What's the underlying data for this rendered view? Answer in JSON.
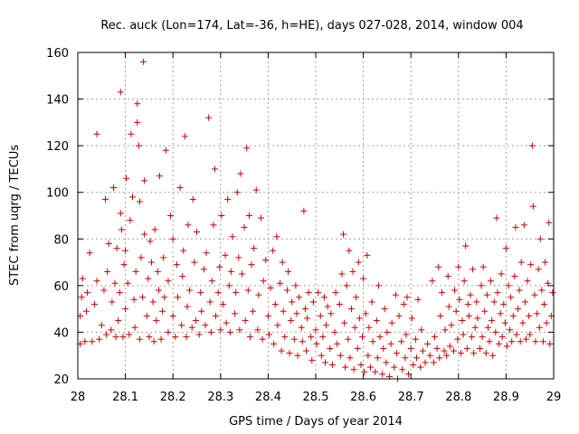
{
  "chart_data": {
    "type": "scatter",
    "title": "Rec. auck (Lon=174, Lat=-36, h=HE), days 027-028, 2014, window 004",
    "xlabel": "GPS time / Days of year 2014",
    "ylabel": "STEC from uqrg / TECUs",
    "xlim": [
      28,
      29
    ],
    "ylim": [
      20,
      160
    ],
    "xticks": [
      "28",
      "28.1",
      "28.2",
      "28.3",
      "28.4",
      "28.5",
      "28.6",
      "28.7",
      "28.8",
      "28.9",
      "29"
    ],
    "yticks": [
      "20",
      "40",
      "60",
      "80",
      "100",
      "120",
      "140",
      "160"
    ],
    "grid": true,
    "marker": "+",
    "color": "#cc0000",
    "points": [
      [
        28.005,
        35
      ],
      [
        28.005,
        47
      ],
      [
        28.008,
        55
      ],
      [
        28.01,
        63
      ],
      [
        28.015,
        36
      ],
      [
        28.018,
        49
      ],
      [
        28.02,
        57
      ],
      [
        28.025,
        74
      ],
      [
        28.03,
        36
      ],
      [
        28.035,
        52
      ],
      [
        28.04,
        62
      ],
      [
        28.04,
        125
      ],
      [
        28.045,
        37
      ],
      [
        28.05,
        43
      ],
      [
        28.055,
        58
      ],
      [
        28.058,
        97
      ],
      [
        28.06,
        39
      ],
      [
        28.062,
        66
      ],
      [
        28.065,
        78
      ],
      [
        28.07,
        41
      ],
      [
        28.072,
        53
      ],
      [
        28.075,
        102
      ],
      [
        28.078,
        61
      ],
      [
        28.08,
        38
      ],
      [
        28.082,
        76
      ],
      [
        28.085,
        45
      ],
      [
        28.088,
        57
      ],
      [
        28.09,
        91
      ],
      [
        28.09,
        143
      ],
      [
        28.092,
        84
      ],
      [
        28.095,
        38
      ],
      [
        28.097,
        69
      ],
      [
        28.1,
        50
      ],
      [
        28.1,
        75
      ],
      [
        28.102,
        106
      ],
      [
        28.105,
        61
      ],
      [
        28.108,
        39
      ],
      [
        28.11,
        88
      ],
      [
        28.112,
        125
      ],
      [
        28.115,
        98
      ],
      [
        28.118,
        54
      ],
      [
        28.12,
        42
      ],
      [
        28.122,
        66
      ],
      [
        28.125,
        138
      ],
      [
        28.125,
        130
      ],
      [
        28.128,
        120
      ],
      [
        28.13,
        96
      ],
      [
        28.13,
        37
      ],
      [
        28.133,
        72
      ],
      [
        28.136,
        55
      ],
      [
        28.138,
        156
      ],
      [
        28.14,
        82
      ],
      [
        28.14,
        105
      ],
      [
        28.145,
        47
      ],
      [
        28.148,
        63
      ],
      [
        28.15,
        38
      ],
      [
        28.152,
        79
      ],
      [
        28.155,
        70
      ],
      [
        28.158,
        53
      ],
      [
        28.16,
        36
      ],
      [
        28.162,
        84
      ],
      [
        28.165,
        45
      ],
      [
        28.168,
        66
      ],
      [
        28.17,
        58
      ],
      [
        28.172,
        107
      ],
      [
        28.175,
        37
      ],
      [
        28.178,
        49
      ],
      [
        28.18,
        72
      ],
      [
        28.182,
        55
      ],
      [
        28.185,
        118
      ],
      [
        28.19,
        40
      ],
      [
        28.19,
        62
      ],
      [
        28.195,
        90
      ],
      [
        28.2,
        47
      ],
      [
        28.2,
        80
      ],
      [
        28.205,
        38
      ],
      [
        28.208,
        69
      ],
      [
        28.21,
        55
      ],
      [
        28.215,
        102
      ],
      [
        28.218,
        43
      ],
      [
        28.22,
        64
      ],
      [
        28.222,
        75
      ],
      [
        28.225,
        124
      ],
      [
        28.228,
        38
      ],
      [
        28.23,
        51
      ],
      [
        28.232,
        86
      ],
      [
        28.235,
        58
      ],
      [
        28.24,
        42
      ],
      [
        28.242,
        97
      ],
      [
        28.245,
        70
      ],
      [
        28.248,
        45
      ],
      [
        28.25,
        83
      ],
      [
        28.255,
        39
      ],
      [
        28.258,
        57
      ],
      [
        28.26,
        49
      ],
      [
        28.265,
        67
      ],
      [
        28.268,
        43
      ],
      [
        28.27,
        74
      ],
      [
        28.275,
        132
      ],
      [
        28.278,
        53
      ],
      [
        28.28,
        40
      ],
      [
        28.282,
        62
      ],
      [
        28.285,
        86
      ],
      [
        28.288,
        110
      ],
      [
        28.29,
        47
      ],
      [
        28.295,
        57
      ],
      [
        28.298,
        68
      ],
      [
        28.3,
        41
      ],
      [
        28.302,
        90
      ],
      [
        28.305,
        52
      ],
      [
        28.31,
        73
      ],
      [
        28.312,
        44
      ],
      [
        28.315,
        97
      ],
      [
        28.318,
        60
      ],
      [
        28.32,
        40
      ],
      [
        28.322,
        66
      ],
      [
        28.325,
        81
      ],
      [
        28.33,
        48
      ],
      [
        28.332,
        57
      ],
      [
        28.335,
        100
      ],
      [
        28.338,
        72
      ],
      [
        28.34,
        41
      ],
      [
        28.342,
        108
      ],
      [
        28.345,
        65
      ],
      [
        28.35,
        85
      ],
      [
        28.352,
        45
      ],
      [
        28.355,
        119
      ],
      [
        28.358,
        58
      ],
      [
        28.36,
        90
      ],
      [
        28.362,
        38
      ],
      [
        28.365,
        69
      ],
      [
        28.368,
        49
      ],
      [
        28.37,
        76
      ],
      [
        28.375,
        101
      ],
      [
        28.378,
        41
      ],
      [
        28.38,
        56
      ],
      [
        28.385,
        89
      ],
      [
        28.388,
        37
      ],
      [
        28.39,
        62
      ],
      [
        28.395,
        71
      ],
      [
        28.4,
        47
      ],
      [
        28.402,
        39
      ],
      [
        28.405,
        59
      ],
      [
        28.41,
        75
      ],
      [
        28.412,
        35
      ],
      [
        28.415,
        52
      ],
      [
        28.418,
        81
      ],
      [
        28.42,
        43
      ],
      [
        28.425,
        61
      ],
      [
        28.428,
        32
      ],
      [
        28.43,
        70
      ],
      [
        28.432,
        49
      ],
      [
        28.435,
        38
      ],
      [
        28.44,
        58
      ],
      [
        28.442,
        66
      ],
      [
        28.445,
        31
      ],
      [
        28.448,
        45
      ],
      [
        28.45,
        53
      ],
      [
        28.455,
        37
      ],
      [
        28.458,
        60
      ],
      [
        28.46,
        48
      ],
      [
        28.462,
        30
      ],
      [
        28.465,
        55
      ],
      [
        28.47,
        42
      ],
      [
        28.472,
        36
      ],
      [
        28.475,
        92
      ],
      [
        28.478,
        50
      ],
      [
        28.48,
        32
      ],
      [
        28.482,
        46
      ],
      [
        28.485,
        57
      ],
      [
        28.49,
        38
      ],
      [
        28.492,
        28
      ],
      [
        28.495,
        53
      ],
      [
        28.5,
        41
      ],
      [
        28.502,
        35
      ],
      [
        28.505,
        57
      ],
      [
        28.51,
        47
      ],
      [
        28.512,
        30
      ],
      [
        28.515,
        38
      ],
      [
        28.518,
        55
      ],
      [
        28.52,
        27
      ],
      [
        28.522,
        43
      ],
      [
        28.525,
        51
      ],
      [
        28.53,
        33
      ],
      [
        28.532,
        48
      ],
      [
        28.535,
        26
      ],
      [
        28.54,
        40
      ],
      [
        28.542,
        57
      ],
      [
        28.545,
        35
      ],
      [
        28.55,
        52
      ],
      [
        28.552,
        30
      ],
      [
        28.555,
        65
      ],
      [
        28.558,
        82
      ],
      [
        28.56,
        44
      ],
      [
        28.562,
        25
      ],
      [
        28.565,
        60
      ],
      [
        28.568,
        37
      ],
      [
        28.57,
        75
      ],
      [
        28.572,
        29
      ],
      [
        28.575,
        50
      ],
      [
        28.578,
        66
      ],
      [
        28.58,
        24
      ],
      [
        28.582,
        42
      ],
      [
        28.585,
        55
      ],
      [
        28.588,
        33
      ],
      [
        28.59,
        70
      ],
      [
        28.592,
        46
      ],
      [
        28.595,
        26
      ],
      [
        28.598,
        38
      ],
      [
        28.6,
        63
      ],
      [
        28.602,
        23
      ],
      [
        28.605,
        48
      ],
      [
        28.608,
        73
      ],
      [
        28.61,
        30
      ],
      [
        28.612,
        42
      ],
      [
        28.615,
        25
      ],
      [
        28.618,
        53
      ],
      [
        28.62,
        36
      ],
      [
        28.625,
        23
      ],
      [
        28.628,
        45
      ],
      [
        28.63,
        29
      ],
      [
        28.632,
        60
      ],
      [
        28.635,
        38
      ],
      [
        28.64,
        22
      ],
      [
        28.642,
        33
      ],
      [
        28.645,
        50
      ],
      [
        28.648,
        27
      ],
      [
        28.65,
        40
      ],
      [
        28.655,
        21
      ],
      [
        28.658,
        35
      ],
      [
        28.66,
        44
      ],
      [
        28.665,
        25
      ],
      [
        28.668,
        56
      ],
      [
        28.67,
        31
      ],
      [
        28.672,
        20
      ],
      [
        28.675,
        47
      ],
      [
        28.68,
        36
      ],
      [
        28.682,
        24
      ],
      [
        28.685,
        52
      ],
      [
        28.688,
        29
      ],
      [
        28.69,
        39
      ],
      [
        28.692,
        55
      ],
      [
        28.695,
        22
      ],
      [
        28.7,
        33
      ],
      [
        28.702,
        46
      ],
      [
        28.705,
        26
      ],
      [
        28.71,
        37
      ],
      [
        28.712,
        29
      ],
      [
        28.715,
        54
      ],
      [
        28.72,
        25
      ],
      [
        28.722,
        41
      ],
      [
        28.725,
        32
      ],
      [
        28.73,
        27
      ],
      [
        28.735,
        35
      ],
      [
        28.74,
        30
      ],
      [
        28.745,
        62
      ],
      [
        28.748,
        27
      ],
      [
        28.75,
        38
      ],
      [
        28.755,
        33
      ],
      [
        28.758,
        68
      ],
      [
        28.76,
        29
      ],
      [
        28.762,
        47
      ],
      [
        28.765,
        57
      ],
      [
        28.77,
        32
      ],
      [
        28.772,
        41
      ],
      [
        28.775,
        30
      ],
      [
        28.778,
        64
      ],
      [
        28.78,
        51
      ],
      [
        28.782,
        34
      ],
      [
        28.785,
        43
      ],
      [
        28.79,
        32
      ],
      [
        28.792,
        58
      ],
      [
        28.795,
        49
      ],
      [
        28.798,
        37
      ],
      [
        28.8,
        68
      ],
      [
        28.802,
        54
      ],
      [
        28.805,
        31
      ],
      [
        28.808,
        45
      ],
      [
        28.81,
        39
      ],
      [
        28.812,
        62
      ],
      [
        28.815,
        77
      ],
      [
        28.818,
        33
      ],
      [
        28.82,
        52
      ],
      [
        28.822,
        47
      ],
      [
        28.825,
        56
      ],
      [
        28.828,
        38
      ],
      [
        28.83,
        67
      ],
      [
        28.832,
        31
      ],
      [
        28.835,
        42
      ],
      [
        28.838,
        53
      ],
      [
        28.84,
        46
      ],
      [
        28.845,
        33
      ],
      [
        28.848,
        60
      ],
      [
        28.85,
        38
      ],
      [
        28.852,
        68
      ],
      [
        28.855,
        49
      ],
      [
        28.858,
        31
      ],
      [
        28.86,
        56
      ],
      [
        28.862,
        42
      ],
      [
        28.865,
        36
      ],
      [
        28.868,
        62
      ],
      [
        28.87,
        45
      ],
      [
        28.872,
        30
      ],
      [
        28.875,
        53
      ],
      [
        28.878,
        40
      ],
      [
        28.88,
        89
      ],
      [
        28.882,
        57
      ],
      [
        28.885,
        35
      ],
      [
        28.888,
        48
      ],
      [
        28.89,
        65
      ],
      [
        28.892,
        38
      ],
      [
        28.895,
        52
      ],
      [
        28.898,
        44
      ],
      [
        28.9,
        76
      ],
      [
        28.902,
        34
      ],
      [
        28.905,
        60
      ],
      [
        28.908,
        41
      ],
      [
        28.91,
        55
      ],
      [
        28.912,
        36
      ],
      [
        28.915,
        47
      ],
      [
        28.918,
        64
      ],
      [
        28.92,
        85
      ],
      [
        28.922,
        39
      ],
      [
        28.925,
        50
      ],
      [
        28.928,
        58
      ],
      [
        28.93,
        36
      ],
      [
        28.932,
        70
      ],
      [
        28.935,
        44
      ],
      [
        28.938,
        86
      ],
      [
        28.94,
        53
      ],
      [
        28.942,
        37
      ],
      [
        28.945,
        62
      ],
      [
        28.948,
        47
      ],
      [
        28.95,
        39
      ],
      [
        28.952,
        69
      ],
      [
        28.955,
        120
      ],
      [
        28.957,
        94
      ],
      [
        28.96,
        56
      ],
      [
        28.962,
        36
      ],
      [
        28.965,
        48
      ],
      [
        28.968,
        67
      ],
      [
        28.97,
        42
      ],
      [
        28.972,
        80
      ],
      [
        28.975,
        58
      ],
      [
        28.978,
        36
      ],
      [
        28.98,
        52
      ],
      [
        28.982,
        70
      ],
      [
        28.985,
        44
      ],
      [
        28.988,
        61
      ],
      [
        28.99,
        87
      ],
      [
        28.992,
        35
      ],
      [
        28.995,
        47
      ],
      [
        28.998,
        57
      ]
    ]
  }
}
